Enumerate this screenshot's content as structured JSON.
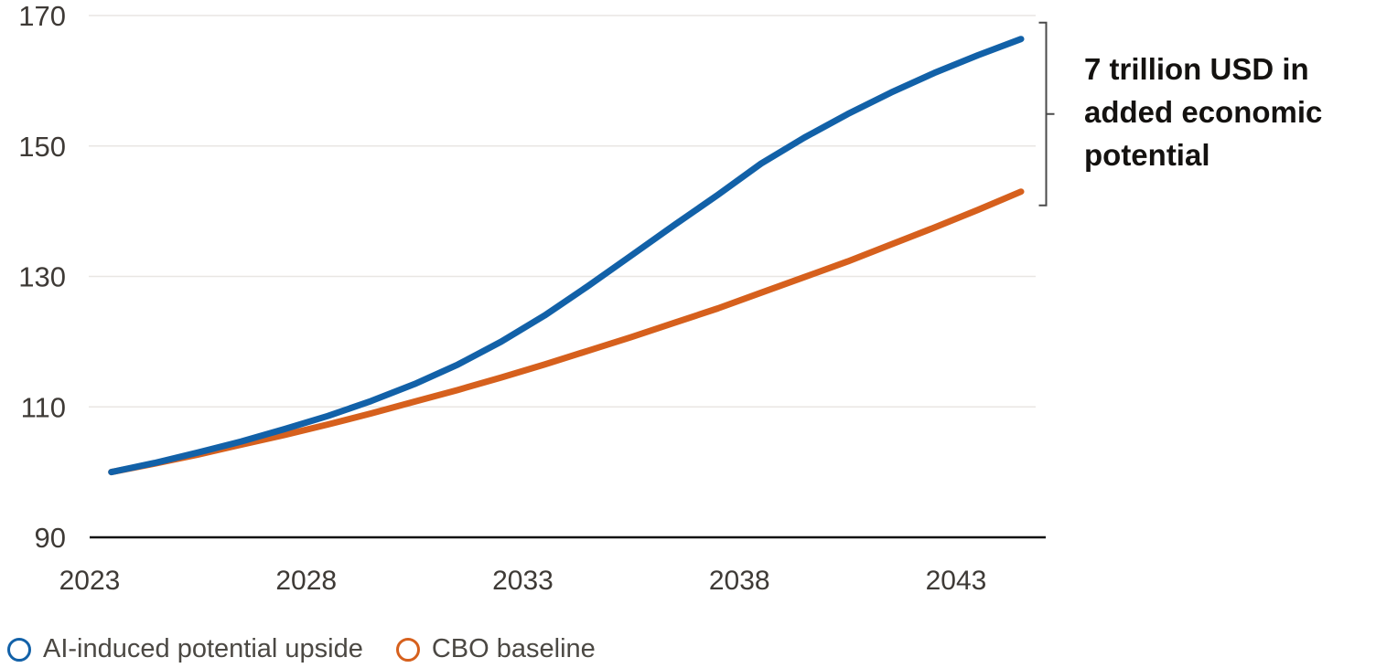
{
  "chart_data": {
    "type": "line",
    "title": "",
    "xlabel": "",
    "ylabel": "",
    "x": [
      2023,
      2024,
      2025,
      2026,
      2027,
      2028,
      2029,
      2030,
      2031,
      2032,
      2033,
      2034,
      2035,
      2036,
      2037,
      2038,
      2039,
      2040,
      2041,
      2042,
      2043,
      2044
    ],
    "series": [
      {
        "name": "AI-induced potential upside",
        "color": "#1261a8",
        "values": [
          100.0,
          101.4,
          103.0,
          104.7,
          106.6,
          108.6,
          110.9,
          113.5,
          116.5,
          120.0,
          124.0,
          128.5,
          133.2,
          137.9,
          142.5,
          147.3,
          151.3,
          154.9,
          158.2,
          161.2,
          163.9,
          166.4
        ]
      },
      {
        "name": "CBO baseline",
        "color": "#d6601d",
        "values": [
          100.0,
          101.3,
          102.7,
          104.2,
          105.7,
          107.3,
          109.0,
          110.8,
          112.6,
          114.5,
          116.5,
          118.6,
          120.7,
          122.9,
          125.1,
          127.5,
          129.9,
          132.3,
          134.9,
          137.5,
          140.2,
          143.0
        ]
      }
    ],
    "ylim": [
      90,
      170
    ],
    "yticks": [
      90,
      110,
      130,
      150,
      170
    ],
    "xticks": [
      2023,
      2028,
      2033,
      2038,
      2043
    ],
    "grid": "horizontal-only",
    "legend_position": "bottom-left",
    "annotation": "7 trillion USD in added economic potential"
  },
  "annotation": {
    "lines": [
      "7 trillion USD in",
      "added economic",
      "potential"
    ]
  },
  "legend": {
    "items": [
      {
        "label": "AI-induced potential upside",
        "color": "#1261a8"
      },
      {
        "label": "CBO baseline",
        "color": "#d6601d"
      }
    ]
  },
  "colors": {
    "blue": "#1261a8",
    "orange": "#d6601d",
    "grid": "#e9e6e3",
    "axis": "#111111",
    "tick_text": "#3e3a36",
    "legend_text": "#4b4843",
    "annotation_text": "#141210",
    "bracket": "#4a4a4a"
  }
}
